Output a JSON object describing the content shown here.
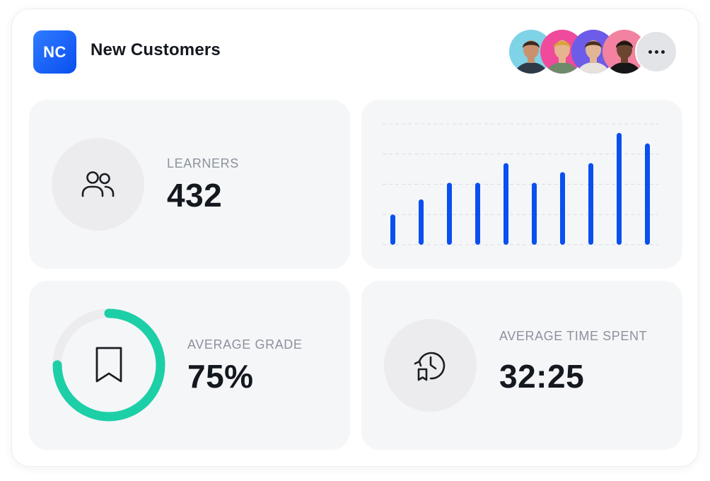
{
  "header": {
    "logo_text": "NC",
    "title": "New Customers",
    "logo_color": "#1b5cf5"
  },
  "avatars": [
    {
      "name": "avatar-1",
      "bg": "#7fd3e6",
      "skin": "#c9916e",
      "hair": "#3b2a22",
      "shirt": "#2e3a48"
    },
    {
      "name": "avatar-2",
      "bg": "#f04a9c",
      "skin": "#e6b48d",
      "hair": "#d9a23b",
      "shirt": "#6e8a6a"
    },
    {
      "name": "avatar-3",
      "bg": "#6c5ce7",
      "skin": "#e2b596",
      "hair": "#4b2f22",
      "shirt": "#e8e2dc"
    },
    {
      "name": "avatar-4",
      "bg": "#f2829f",
      "skin": "#6b4530",
      "hair": "#1d1512",
      "shirt": "#161616"
    }
  ],
  "more_button": {
    "icon": "more-horizontal-icon"
  },
  "learners": {
    "label": "LEARNERS",
    "value": "432",
    "icon": "users-icon"
  },
  "average_grade": {
    "label": "AVERAGE GRADE",
    "value": "75%",
    "progress": 0.75,
    "icon": "bookmark-icon",
    "ring_color": "#1ccfa7"
  },
  "average_time": {
    "label": "AVERAGE TIME SPENT",
    "value": "32:25",
    "icon": "clock-history-icon"
  },
  "chart_data": {
    "type": "bar",
    "values": [
      10,
      15,
      20.5,
      20.5,
      27,
      20.5,
      24,
      27,
      37,
      33.5
    ],
    "ylim": [
      0,
      40
    ],
    "grid": true,
    "bar_color": "#0a4ff0"
  }
}
